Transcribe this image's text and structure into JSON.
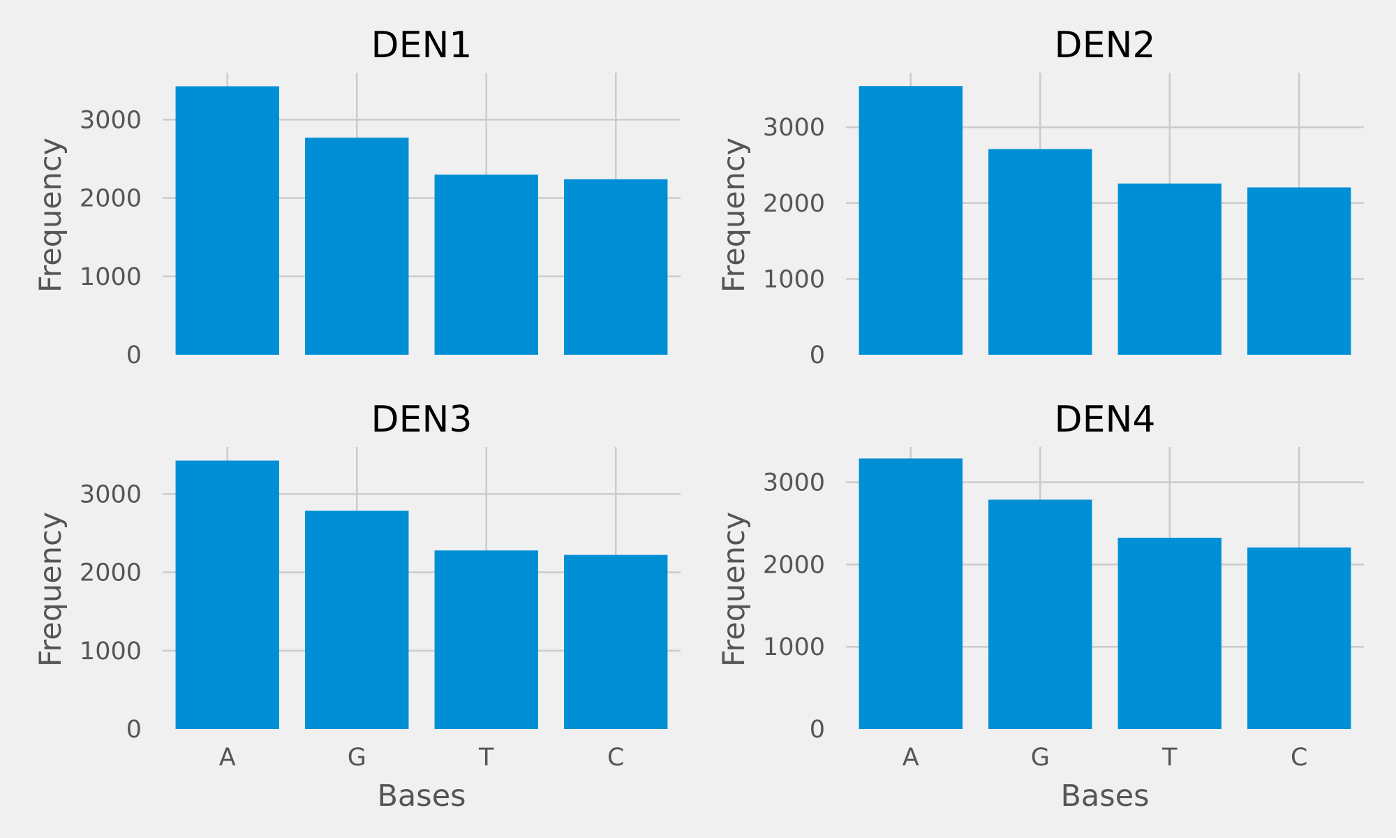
{
  "figure": {
    "background": "#f0f0f0",
    "bar_color": "#008fd5",
    "grid_color": "#cbcbcb"
  },
  "chart_data": [
    {
      "type": "bar",
      "title": "DEN1",
      "categories": [
        "A",
        "G",
        "T",
        "C"
      ],
      "values": [
        3426,
        2770,
        2299,
        2240
      ],
      "xlabel": "",
      "ylabel": "Frequency",
      "ylim": [
        0,
        3600
      ],
      "yticks": [
        "0",
        "1000",
        "2000",
        "3000"
      ],
      "show_xticklabels": false,
      "grid": true
    },
    {
      "type": "bar",
      "title": "DEN2",
      "categories": [
        "A",
        "G",
        "T",
        "C"
      ],
      "values": [
        3543,
        2712,
        2258,
        2206
      ],
      "xlabel": "",
      "ylabel": "Frequency",
      "ylim": [
        0,
        3720
      ],
      "yticks": [
        "0",
        "1000",
        "2000",
        "3000"
      ],
      "show_xticklabels": false,
      "grid": true
    },
    {
      "type": "bar",
      "title": "DEN3",
      "categories": [
        "A",
        "G",
        "T",
        "C"
      ],
      "values": [
        3426,
        2785,
        2279,
        2222
      ],
      "xlabel": "Bases",
      "ylabel": "Frequency",
      "ylim": [
        0,
        3600
      ],
      "yticks": [
        "0",
        "1000",
        "2000",
        "3000"
      ],
      "show_xticklabels": true,
      "grid": true
    },
    {
      "type": "bar",
      "title": "DEN4",
      "categories": [
        "A",
        "G",
        "T",
        "C"
      ],
      "values": [
        3290,
        2789,
        2326,
        2207
      ],
      "xlabel": "Bases",
      "ylabel": "Frequency",
      "ylim": [
        0,
        3430
      ],
      "yticks": [
        "0",
        "1000",
        "2000",
        "3000"
      ],
      "show_xticklabels": true,
      "grid": true
    }
  ]
}
